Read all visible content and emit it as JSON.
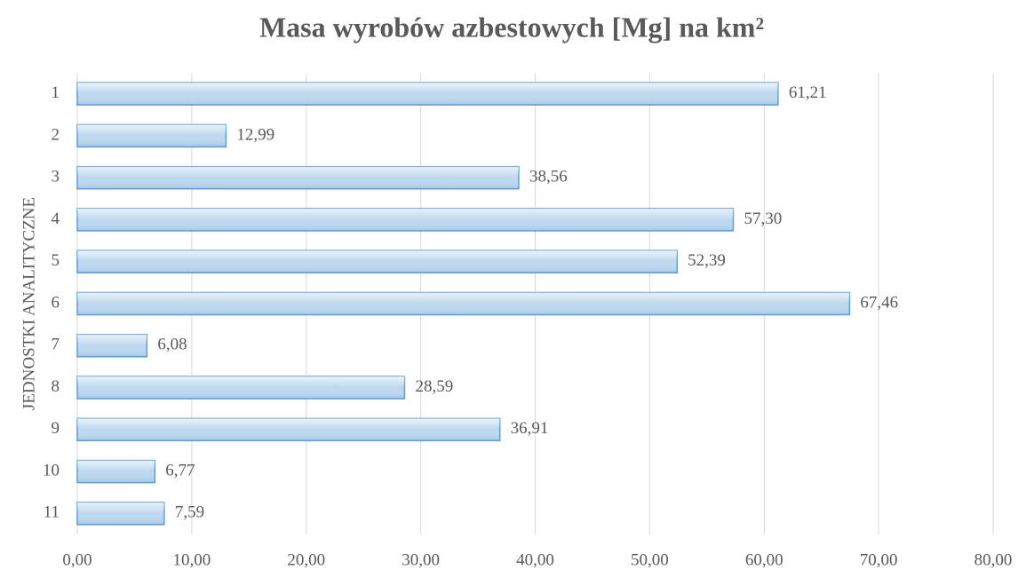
{
  "chart_data": {
    "type": "bar",
    "orientation": "horizontal",
    "title": "Masa wyrobów azbestowych [Mg] na km²",
    "y_label": "JEDNOSTKI ANALITYCZNE",
    "categories": [
      "1",
      "2",
      "3",
      "4",
      "5",
      "6",
      "7",
      "8",
      "9",
      "10",
      "11"
    ],
    "values": [
      61.21,
      12.99,
      38.56,
      57.3,
      52.39,
      67.46,
      6.08,
      28.59,
      36.91,
      6.77,
      7.59
    ],
    "value_labels": [
      "61,21",
      "12,99",
      "38,56",
      "57,30",
      "52,39",
      "67,46",
      "6,08",
      "28,59",
      "36,91",
      "6,77",
      "7,59"
    ],
    "color": "#bdd7ee",
    "xlim": [
      0,
      80
    ],
    "xticks": [
      {
        "value": 0,
        "label": "0,00"
      },
      {
        "value": 10,
        "label": "10,00"
      },
      {
        "value": 20,
        "label": "20,00"
      },
      {
        "value": 30,
        "label": "30,00"
      },
      {
        "value": 40,
        "label": "40,00"
      },
      {
        "value": 50,
        "label": "50,00"
      },
      {
        "value": 60,
        "label": "60,00"
      },
      {
        "value": 70,
        "label": "70,00"
      },
      {
        "value": 80,
        "label": "80,00"
      }
    ],
    "grid": true
  }
}
